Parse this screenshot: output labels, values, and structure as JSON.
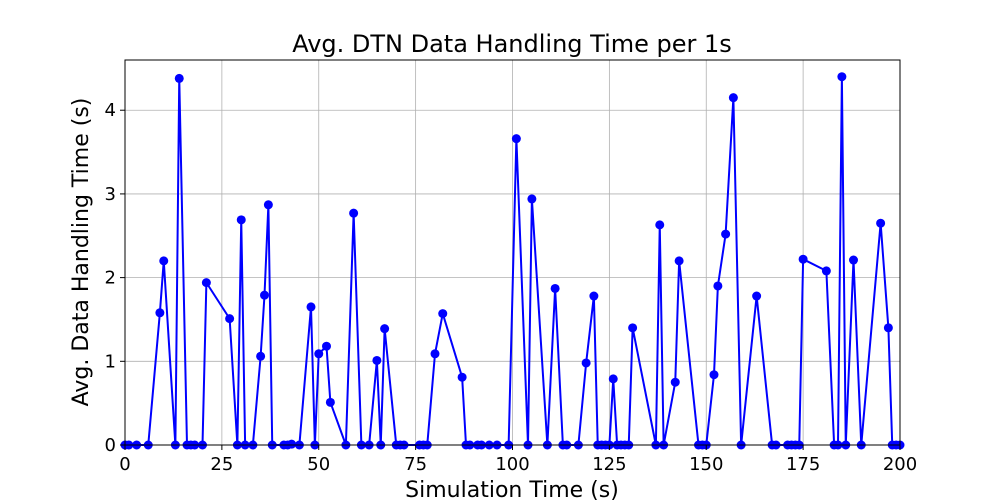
{
  "chart_data": {
    "type": "line",
    "title": "Avg. DTN Data Handling Time per 1s",
    "xlabel": "Simulation Time (s)",
    "ylabel": "Avg. Data Handling Time (s)",
    "xlim": [
      0,
      200
    ],
    "ylim": [
      0,
      4.6
    ],
    "xticks": [
      0,
      25,
      50,
      75,
      100,
      125,
      150,
      175,
      200
    ],
    "yticks": [
      0,
      1,
      2,
      3,
      4
    ],
    "grid": true,
    "color": "#0000ff",
    "series": [
      {
        "x": [
          0,
          1,
          3,
          6,
          9,
          10,
          13,
          14,
          16,
          17,
          18,
          20,
          21,
          27,
          29,
          30,
          31,
          33,
          35,
          36,
          37,
          38,
          41,
          42,
          43,
          45,
          48,
          49,
          50,
          52,
          53,
          57,
          59,
          61,
          63,
          65,
          66,
          67,
          70,
          71,
          72,
          76,
          77,
          78,
          80,
          82,
          87,
          88,
          89,
          91,
          92,
          94,
          96,
          99,
          101,
          104,
          105,
          109,
          111,
          113,
          114,
          117,
          119,
          121,
          122,
          123,
          124,
          125,
          126,
          127,
          128,
          129,
          130,
          131,
          137,
          138,
          139,
          142,
          143,
          148,
          149,
          150,
          152,
          153,
          155,
          157,
          159,
          163,
          167,
          168,
          171,
          172,
          173,
          174,
          175,
          181,
          183,
          184,
          185,
          186,
          188,
          190,
          195,
          197,
          198,
          199,
          200
        ],
        "y": [
          0,
          0,
          0,
          0,
          1.58,
          2.2,
          0,
          4.38,
          0,
          0,
          0,
          0,
          1.94,
          1.51,
          0,
          2.69,
          0,
          0,
          1.06,
          1.79,
          2.87,
          0,
          0,
          0,
          0.01,
          0,
          1.65,
          0,
          1.09,
          1.18,
          0.51,
          0,
          2.77,
          0,
          0,
          1.01,
          0,
          1.39,
          0,
          0,
          0,
          0,
          0,
          0,
          1.09,
          1.57,
          0.81,
          0,
          0,
          0,
          0,
          0,
          0,
          0,
          3.66,
          0,
          2.94,
          0,
          1.87,
          0,
          0,
          0,
          0.98,
          1.78,
          0,
          0,
          0,
          0,
          0.79,
          0,
          0,
          0,
          0,
          1.4,
          0,
          2.63,
          0,
          0.75,
          2.2,
          0,
          0,
          0,
          0.84,
          1.9,
          2.52,
          4.15,
          0,
          1.78,
          0,
          0,
          0,
          0,
          0,
          0,
          2.22,
          2.08,
          0,
          0,
          4.4,
          0,
          2.21,
          0,
          2.65,
          1.4,
          0,
          0,
          0
        ]
      }
    ]
  }
}
